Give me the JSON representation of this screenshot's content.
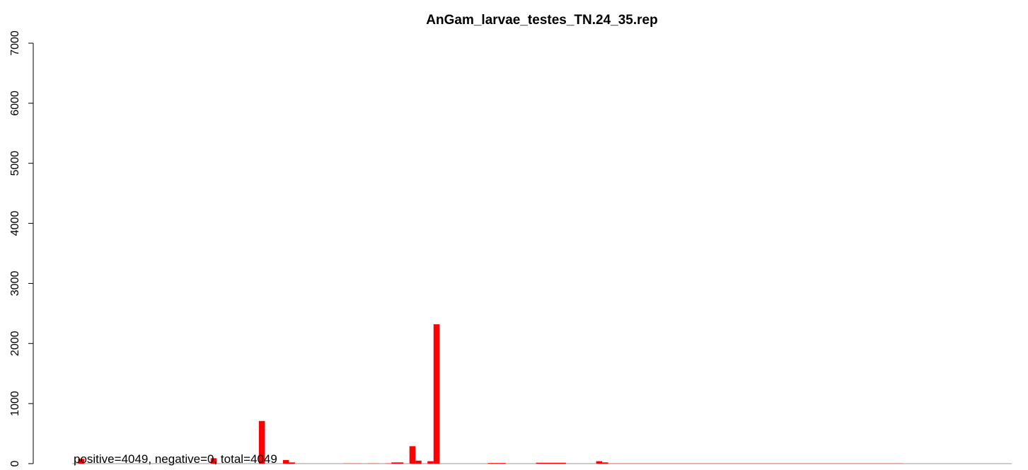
{
  "chart_data": {
    "type": "bar",
    "title": "AnGam_larvae_testes_TN.24_35.rep",
    "annotation": "positive=4049, negative=0, total=4049",
    "color": "#ff0000",
    "ylim": [
      0,
      7000
    ],
    "yticks": [
      0,
      1000,
      2000,
      3000,
      4000,
      5000,
      6000,
      7000
    ],
    "values": [
      0,
      80,
      0,
      0,
      0,
      0,
      0,
      0,
      0,
      0,
      0,
      0,
      0,
      0,
      0,
      0,
      0,
      0,
      0,
      0,
      0,
      0,
      0,
      90,
      0,
      0,
      0,
      0,
      0,
      0,
      0,
      710,
      0,
      0,
      0,
      60,
      20,
      0,
      0,
      0,
      0,
      0,
      0,
      0,
      0,
      3,
      3,
      3,
      0,
      3,
      3,
      0,
      5,
      20,
      20,
      0,
      290,
      50,
      0,
      40,
      2320,
      0,
      0,
      0,
      0,
      0,
      0,
      0,
      0,
      10,
      10,
      10,
      0,
      0,
      0,
      0,
      0,
      15,
      15,
      15,
      15,
      15,
      0,
      0,
      0,
      0,
      0,
      40,
      20,
      3,
      3,
      3,
      3,
      3,
      3,
      3,
      3,
      3,
      3,
      3,
      3,
      3,
      3,
      3,
      3,
      3,
      3,
      3,
      3,
      3,
      3,
      3,
      3,
      3,
      3,
      3,
      3,
      3,
      3,
      3,
      3,
      3,
      3,
      3,
      3,
      3,
      3,
      3,
      3,
      3,
      3,
      3,
      3,
      3,
      3,
      3,
      3,
      3,
      0,
      0,
      0,
      0,
      0,
      0,
      0,
      0,
      0,
      0,
      0,
      0,
      0,
      0,
      0,
      0,
      0,
      0
    ]
  }
}
